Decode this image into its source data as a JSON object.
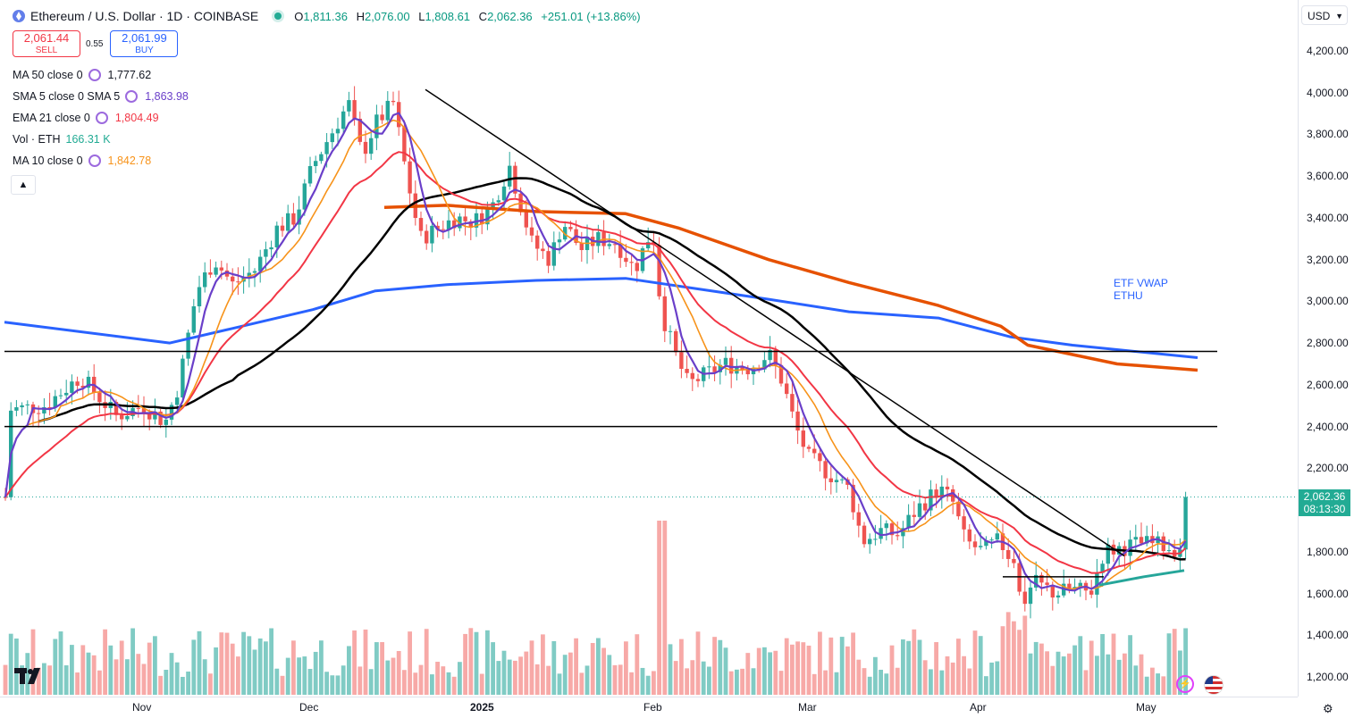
{
  "header": {
    "title": "Ethereum / U.S. Dollar · 1D · COINBASE",
    "ohlc": {
      "o_label": "O",
      "o": "1,811.36",
      "h_label": "H",
      "h": "2,076.00",
      "l_label": "L",
      "l": "1,808.61",
      "c_label": "C",
      "c": "2,062.36",
      "change": "+251.01 (+13.86%)"
    }
  },
  "trade": {
    "sell_price": "2,061.44",
    "sell_label": "SELL",
    "spread": "0.55",
    "buy_price": "2,061.99",
    "buy_label": "BUY"
  },
  "indicators": [
    {
      "name": "MA 50 close 0",
      "value": "1,777.62",
      "color": "#131722"
    },
    {
      "name": "SMA 5 close 0 SMA 5",
      "value": "1,863.98",
      "color": "#6a3fc9"
    },
    {
      "name": "EMA 21 close 0",
      "value": "1,804.49",
      "color": "#f23645"
    },
    {
      "name": "Vol · ETH",
      "value": "166.31 K",
      "color": "#22ab94"
    },
    {
      "name": "MA 10 close 0",
      "value": "1,842.78",
      "color": "#f7931a"
    }
  ],
  "collapse_icon": "chevron-up-icon",
  "currency": "USD",
  "price_axis": [
    "4,200.00",
    "4,000.00",
    "3,800.00",
    "3,600.00",
    "3,400.00",
    "3,200.00",
    "3,000.00",
    "2,800.00",
    "2,600.00",
    "2,400.00",
    "2,200.00",
    "2,000.00",
    "1,800.00",
    "1,600.00",
    "1,400.00",
    "1,200.00"
  ],
  "last_price": {
    "value": "2,062.36",
    "countdown": "08:13:30",
    "color": "#22ab94"
  },
  "time_axis": [
    "Nov",
    "Dec",
    "2025",
    "Feb",
    "Mar",
    "Apr",
    "May"
  ],
  "annotation": {
    "line1": "ETF VWAP",
    "line2": "ETHU"
  },
  "colors": {
    "up": "#26a69a",
    "down": "#ef5350",
    "vwap": "#2962ff",
    "ma200": "#e65100",
    "ma50": "#000000",
    "ema21": "#f23645",
    "sma5": "#6a3fc9",
    "ma10": "#f7931a",
    "teal": "#26a69a"
  },
  "chart_data": {
    "type": "candlestick",
    "symbol": "ETH/USD",
    "interval": "1D",
    "x": [
      "2024-10-15",
      "2024-11-01",
      "2024-12-01",
      "2025-01-01",
      "2025-02-01",
      "2025-03-01",
      "2025-04-01",
      "2025-05-01",
      "2025-05-08"
    ],
    "close_approx": [
      2600,
      2500,
      3700,
      3350,
      3100,
      2200,
      1800,
      1840,
      2062.36
    ],
    "ylim": [
      1150,
      4300
    ],
    "horizontal_lines": [
      2760,
      2400,
      1680
    ],
    "last_close": 2062.36
  }
}
